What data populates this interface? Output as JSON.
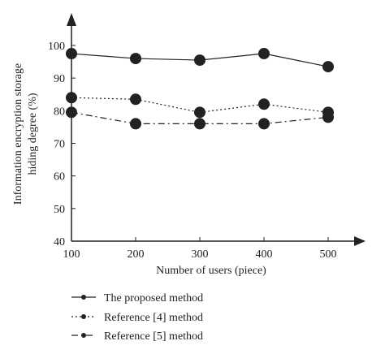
{
  "chart_data": {
    "type": "line",
    "x": [
      100,
      200,
      300,
      400,
      500
    ],
    "xticks": [
      "100",
      "200",
      "300",
      "400",
      "500"
    ],
    "yticks": [
      "40",
      "50",
      "60",
      "70",
      "80",
      "90",
      "100"
    ],
    "xlabel": "Number of users (piece)",
    "ylabel_lines": [
      "Information encryption storage",
      "hiding degree (%)"
    ],
    "xlim": [
      100,
      500
    ],
    "ylim": [
      40,
      100
    ],
    "grid": false,
    "legend_position": "bottom-left",
    "series": [
      {
        "name": "The proposed method",
        "values": [
          97.5,
          96,
          95.5,
          97.5,
          93.5
        ],
        "style": "solid"
      },
      {
        "name": "Reference [4] method",
        "values": [
          84,
          83.5,
          79.5,
          82,
          79.5
        ],
        "style": "dotted"
      },
      {
        "name": "Reference [5] method",
        "values": [
          79.5,
          76,
          76,
          76,
          78
        ],
        "style": "dashdot"
      }
    ]
  }
}
